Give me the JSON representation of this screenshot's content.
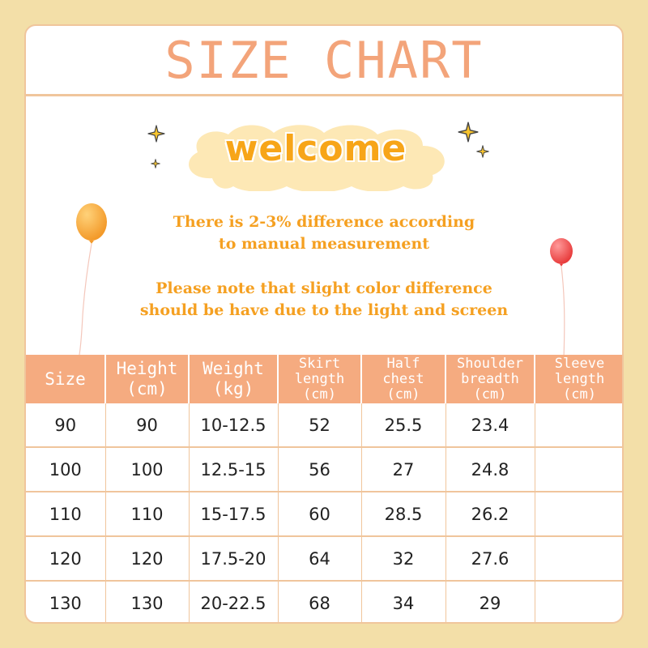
{
  "header": {
    "title": "SIZE CHART"
  },
  "banner": {
    "welcome": "welcome"
  },
  "notes": {
    "line1": "There is 2-3% difference according",
    "line2": "to manual measurement",
    "line3": "Please note that slight color difference",
    "line4": "should be have due to the light and screen"
  },
  "colors": {
    "background": "#f3dfa8",
    "accent": "#f5ab80",
    "title": "#f3a47a",
    "note_text": "#f5a021",
    "welcome_text": "#f7a518",
    "cloud": "#fde8b5",
    "balloon_left": "#f6a83a",
    "balloon_right": "#f05a5a",
    "star": "#f9c52d"
  },
  "icons": {
    "balloon_left": "orange-balloon-icon",
    "balloon_right": "red-balloon-icon",
    "stars": "sparkle-star-icon",
    "cloud": "cloud-icon"
  },
  "table": {
    "columns": [
      {
        "lines": [
          "Size"
        ]
      },
      {
        "lines": [
          "Height",
          "(cm)"
        ]
      },
      {
        "lines": [
          "Weight",
          "(kg)"
        ]
      },
      {
        "lines": [
          "Skirt",
          "length",
          "(cm)"
        ]
      },
      {
        "lines": [
          "Half",
          "chest",
          "(cm)"
        ]
      },
      {
        "lines": [
          "Shoulder",
          "breadth",
          "(cm)"
        ]
      },
      {
        "lines": [
          "Sleeve",
          "length",
          "(cm)"
        ]
      }
    ],
    "rows": [
      [
        "90",
        "90",
        "10-12.5",
        "52",
        "25.5",
        "23.4",
        ""
      ],
      [
        "100",
        "100",
        "12.5-15",
        "56",
        "27",
        "24.8",
        ""
      ],
      [
        "110",
        "110",
        "15-17.5",
        "60",
        "28.5",
        "26.2",
        ""
      ],
      [
        "120",
        "120",
        "17.5-20",
        "64",
        "32",
        "27.6",
        ""
      ],
      [
        "130",
        "130",
        "20-22.5",
        "68",
        "34",
        "29",
        ""
      ]
    ]
  }
}
